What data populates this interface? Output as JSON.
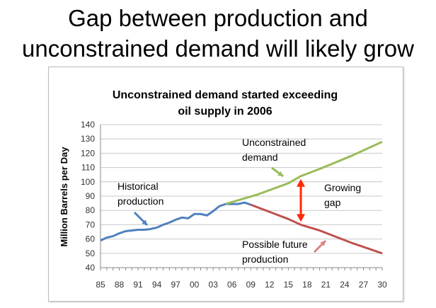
{
  "slide": {
    "title_line1": "Gap between production and",
    "title_line2": "unconstrained demand will likely grow"
  },
  "chart_data": {
    "type": "line",
    "title_line1": "Unconstrained demand started exceeding",
    "title_line2": "oil supply in 2006",
    "ylabel": "Million Barrels per Day",
    "xlabel": "",
    "ylim": [
      40,
      140
    ],
    "xlim": [
      1985,
      2030
    ],
    "yticks": [
      40,
      50,
      60,
      70,
      80,
      90,
      100,
      110,
      120,
      130,
      140
    ],
    "xtick_labels": [
      "85",
      "88",
      "91",
      "94",
      "97",
      "00",
      "03",
      "06",
      "09",
      "12",
      "15",
      "18",
      "21",
      "24",
      "27",
      "30"
    ],
    "grid": true,
    "series": [
      {
        "name": "Historical production",
        "color": "#4f81bd",
        "x": [
          1985,
          1986,
          1987,
          1988,
          1989,
          1990,
          1991,
          1992,
          1993,
          1994,
          1995,
          1996,
          1997,
          1998,
          1999,
          2000,
          2001,
          2002,
          2003,
          2004,
          2005,
          2006,
          2007,
          2008,
          2009
        ],
        "y": [
          59,
          61,
          62,
          64,
          65.5,
          66,
          66.5,
          66.5,
          67,
          68,
          70,
          71.5,
          73.5,
          75,
          74.5,
          77.5,
          77.5,
          76.5,
          79.5,
          83,
          84.5,
          84.5,
          84.5,
          85.5,
          84
        ]
      },
      {
        "name": "Unconstrained demand",
        "color": "#9bbb59",
        "x": [
          2005,
          2010,
          2015,
          2017,
          2020,
          2025,
          2030
        ],
        "y": [
          84.5,
          91,
          99,
          104,
          109,
          118,
          128
        ]
      },
      {
        "name": "Possible future production",
        "color": "#c0504d",
        "x": [
          2009,
          2012,
          2015,
          2017,
          2020,
          2025,
          2030
        ],
        "y": [
          84,
          79,
          74,
          70,
          66,
          57.5,
          50
        ]
      }
    ],
    "annotations": [
      {
        "text_line1": "Historical",
        "text_line2": "production"
      },
      {
        "text_line1": "Unconstrained",
        "text_line2": "demand"
      },
      {
        "text_line1": "Possible future",
        "text_line2": "production"
      },
      {
        "text_line1": "Growing",
        "text_line2": "gap"
      }
    ],
    "gap_arrow": {
      "x": 2017,
      "from": 70,
      "to": 104,
      "color": "#ff2a00"
    }
  }
}
